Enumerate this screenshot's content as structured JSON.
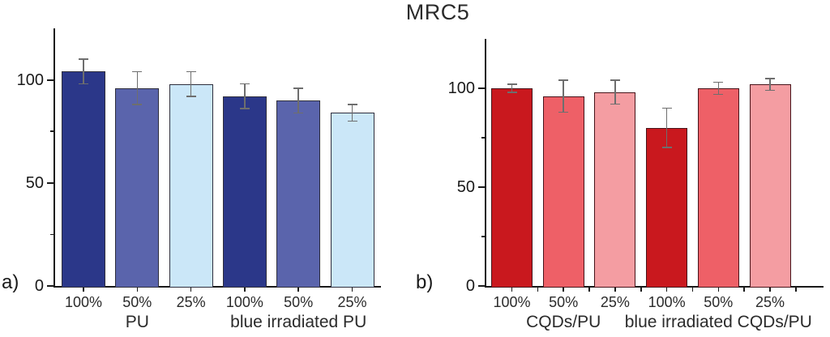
{
  "title": "MRC5",
  "chart_data": [
    {
      "id": "a",
      "panel_label": "a)",
      "type": "bar",
      "categories": [
        "100%",
        "50%",
        "25%",
        "100%",
        "50%",
        "25%"
      ],
      "values": [
        104,
        96,
        98,
        92,
        90,
        84
      ],
      "errors": [
        6,
        8,
        6,
        6,
        6,
        4
      ],
      "bar_colors": [
        "#2b3789",
        "#5a64ac",
        "#cbe7f8",
        "#2b3789",
        "#5a64ac",
        "#cbe7f8"
      ],
      "bar_border_color": "#2e2e3c",
      "group_labels": [
        {
          "text": "PU",
          "center_index": 1
        },
        {
          "text": "blue irradiated PU",
          "center_index": 4
        }
      ],
      "ylabel": "",
      "ylim": [
        0,
        125
      ],
      "yticks_major": [
        0,
        50,
        100
      ],
      "yticks_minor": [
        25,
        75
      ],
      "grid": false,
      "legend": null
    },
    {
      "id": "b",
      "panel_label": "b)",
      "type": "bar",
      "categories": [
        "100%",
        "50%",
        "25%",
        "100%",
        "50%",
        "25%"
      ],
      "values": [
        100,
        96,
        98,
        80,
        100,
        102
      ],
      "errors": [
        2,
        8,
        6,
        10,
        3,
        3
      ],
      "bar_colors": [
        "#c9181e",
        "#ee6067",
        "#f49da2",
        "#c9181e",
        "#ee6067",
        "#f49da2"
      ],
      "bar_border_color": "#47141a",
      "group_labels": [
        {
          "text": "CQDs/PU",
          "center_index": 1
        },
        {
          "text": "blue irradiated CQDs/PU",
          "center_index": 4
        }
      ],
      "ylabel": "",
      "ylim": [
        0,
        125
      ],
      "yticks_major": [
        0,
        50,
        100
      ],
      "yticks_minor": [
        25,
        75
      ],
      "grid": false,
      "legend": null
    }
  ],
  "colors": {
    "background": "#ffffff",
    "axis": "#1a1a1a",
    "text": "#2b2b2b",
    "error_bar": "#6e6e6e",
    "blue_dark": "#2b3789",
    "blue_medium": "#5a64ac",
    "blue_light": "#cbe7f8",
    "red_dark": "#c9181e",
    "red_medium": "#ee6067",
    "red_light": "#f49da2"
  }
}
